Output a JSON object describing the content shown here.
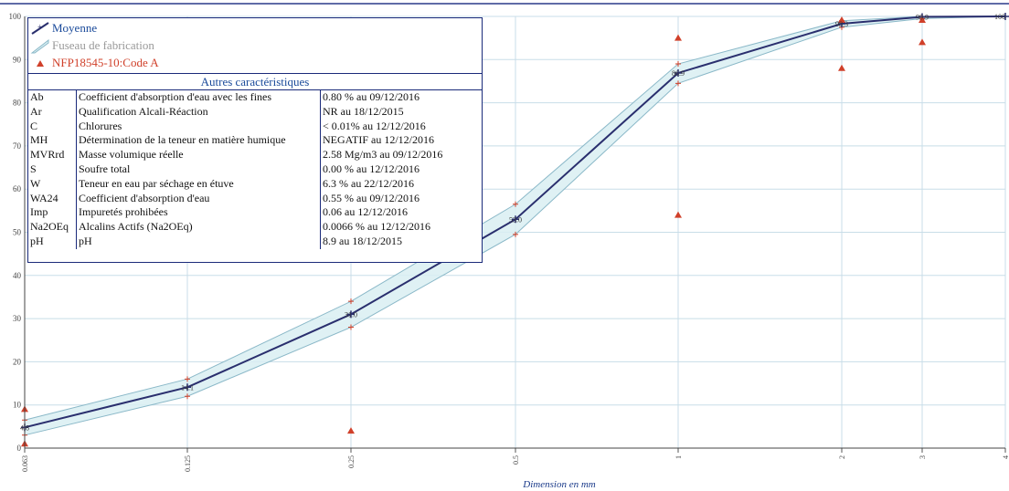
{
  "chart_data": {
    "type": "line",
    "xlabel": "Dimension en mm",
    "ylabel": "",
    "ylim": [
      0,
      100
    ],
    "y_ticks": [
      "0",
      "10",
      "20",
      "30",
      "40",
      "50",
      "60",
      "70",
      "80",
      "90",
      "100"
    ],
    "x_categories": [
      "0.063",
      "0.125",
      "0.25",
      "0.5",
      "1",
      "2",
      "3",
      "4"
    ],
    "grid": true,
    "legend_position": "top-left",
    "series": [
      {
        "name": "Moyenne",
        "color": "#2a2f6e",
        "x": [
          "0.063",
          "0.125",
          "0.25",
          "0.5",
          "1",
          "2",
          "3",
          "4"
        ],
        "y": [
          4.8,
          14.1,
          31.0,
          53.0,
          86.9,
          98.3,
          99.9,
          100
        ]
      },
      {
        "name": "Fuseau de fabrication",
        "color": "#8ab8c8",
        "upper": [
          6.5,
          16.0,
          34.0,
          56.5,
          89.0,
          99.0,
          100,
          100
        ],
        "lower": [
          3.0,
          12.0,
          28.0,
          49.5,
          84.5,
          97.5,
          99.5,
          100
        ]
      },
      {
        "name": "NFP18545-10:Code A",
        "color": "#d0402a",
        "points": [
          {
            "x": "0.063",
            "y": 9
          },
          {
            "x": "0.063",
            "y": 1
          },
          {
            "x": "0.25",
            "y": 4
          },
          {
            "x": "1",
            "y": 95
          },
          {
            "x": "1",
            "y": 54
          },
          {
            "x": "2",
            "y": 100
          },
          {
            "x": "2",
            "y": 88
          },
          {
            "x": "3",
            "y": 94
          },
          {
            "x": "3",
            "y": 100
          }
        ]
      }
    ],
    "data_labels": [
      "4.8",
      "14.1",
      "31.0",
      "53.0",
      "86.9",
      "98.3",
      "99.9",
      "100"
    ]
  },
  "characteristics": {
    "title": "Autres caractéristiques",
    "rows": [
      {
        "code": "Ab",
        "label": "Coefficient d'absorption d'eau avec les fines",
        "value": "0.80 %  au 09/12/2016"
      },
      {
        "code": "Ar",
        "label": "Qualification Alcali-Réaction",
        "value": "NR  au 18/12/2015"
      },
      {
        "code": "C",
        "label": "Chlorures",
        "value": "< 0.01%  au 12/12/2016"
      },
      {
        "code": "MH",
        "label": "Détermination de la teneur en matière humique",
        "value": "NEGATIF  au 12/12/2016"
      },
      {
        "code": "MVRrd",
        "label": "Masse volumique réelle",
        "value": "2.58 Mg/m3  au 09/12/2016"
      },
      {
        "code": "S",
        "label": "Soufre total",
        "value": "0.00 %  au 12/12/2016"
      },
      {
        "code": "W",
        "label": "Teneur en eau par séchage en étuve",
        "value": "6.3 %  au 22/12/2016"
      },
      {
        "code": "WA24",
        "label": "Coefficient d'absorption d'eau",
        "value": "0.55 %  au 09/12/2016"
      },
      {
        "code": "Imp",
        "label": "Impuretés prohibées",
        "value": "0.06   au 12/12/2016"
      },
      {
        "code": "Na2OEq",
        "label": "Alcalins Actifs (Na2OEq)",
        "value": "0.0066 %  au 12/12/2016"
      },
      {
        "code": "pH",
        "label": "pH",
        "value": "8.9   au 18/12/2015"
      }
    ]
  }
}
